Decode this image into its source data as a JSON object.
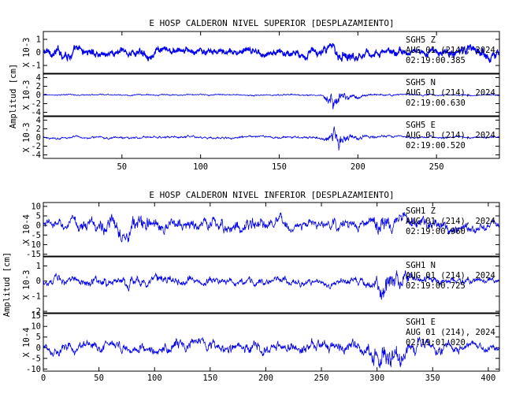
{
  "chart_data": [
    {
      "type": "line",
      "title": "E HOSP CALDERON NIVEL SUPERIOR [DESPLAZAMIENTO]",
      "ylabel": "Amplitud [cm]",
      "xlabel": "",
      "xlim": [
        0,
        290
      ],
      "x_ticks": [
        50,
        100,
        150,
        200,
        250
      ],
      "grid": false,
      "line_color": "#0000ee",
      "traces": [
        {
          "station": "SGH5",
          "component": "Z",
          "date": "AUG 01 (214), 2024",
          "time": "02:19:00.385",
          "scale": "X 10-3",
          "ylim": [
            -1.6,
            1.6
          ],
          "y_ticks": [
            -1,
            0,
            1
          ],
          "envelope": [
            [
              0,
              0.55
            ],
            [
              10,
              0.75
            ],
            [
              40,
              0.6
            ],
            [
              80,
              0.55
            ],
            [
              120,
              0.5
            ],
            [
              150,
              0.5
            ],
            [
              175,
              0.6
            ],
            [
              185,
              0.9
            ],
            [
              195,
              0.8
            ],
            [
              210,
              0.55
            ],
            [
              250,
              0.55
            ],
            [
              275,
              0.8
            ],
            [
              290,
              0.7
            ]
          ]
        },
        {
          "station": "SGH5",
          "component": "N",
          "date": "AUG 01 (214), 2024",
          "time": "02:19:00.630",
          "scale": "X 10-3",
          "ylim": [
            -4.8,
            4.8
          ],
          "y_ticks": [
            -4,
            -2,
            0,
            2,
            4
          ],
          "envelope": [
            [
              0,
              0.3
            ],
            [
              100,
              0.3
            ],
            [
              178,
              0.35
            ],
            [
              180,
              2.6
            ],
            [
              184,
              3.8
            ],
            [
              188,
              3.0
            ],
            [
              195,
              1.2
            ],
            [
              205,
              0.6
            ],
            [
              220,
              0.35
            ],
            [
              290,
              0.3
            ]
          ]
        },
        {
          "station": "SGH5",
          "component": "E",
          "date": "AUG 01 (214), 2024",
          "time": "02:19:00.520",
          "scale": "X 10-3",
          "ylim": [
            -4.8,
            4.8
          ],
          "y_ticks": [
            -4,
            -2,
            0,
            2,
            4
          ],
          "envelope": [
            [
              0,
              0.5
            ],
            [
              100,
              0.5
            ],
            [
              178,
              0.55
            ],
            [
              181,
              2.5
            ],
            [
              186,
              4.2
            ],
            [
              190,
              3.5
            ],
            [
              196,
              1.5
            ],
            [
              205,
              0.8
            ],
            [
              220,
              0.5
            ],
            [
              290,
              0.4
            ]
          ]
        }
      ]
    },
    {
      "type": "line",
      "title": "E HOSP CALDERON NIVEL INFERIOR [DESPLAZAMIENTO]",
      "ylabel": "Amplitud [cm]",
      "xlabel": "",
      "xlim": [
        0,
        410
      ],
      "x_ticks": [
        0,
        50,
        100,
        150,
        200,
        250,
        300,
        350,
        400
      ],
      "grid": false,
      "line_color": "#0000ee",
      "traces": [
        {
          "station": "SGH1",
          "component": "Z",
          "date": "AUG 01 (214), 2024",
          "time": "02:19:00.960",
          "scale": "X 10-4",
          "ylim": [
            -16,
            12
          ],
          "y_ticks": [
            -15,
            -10,
            -5,
            0,
            5,
            10
          ],
          "envelope": [
            [
              0,
              4
            ],
            [
              40,
              7
            ],
            [
              90,
              9
            ],
            [
              120,
              5
            ],
            [
              185,
              8
            ],
            [
              200,
              5
            ],
            [
              250,
              5
            ],
            [
              290,
              5
            ],
            [
              305,
              10
            ],
            [
              320,
              8
            ],
            [
              345,
              6
            ],
            [
              380,
              5
            ],
            [
              410,
              4
            ]
          ]
        },
        {
          "station": "SGH1",
          "component": "N",
          "date": "AUG 01 (214), 2024",
          "time": "02:19:00.725",
          "scale": "X 10-3",
          "ylim": [
            -2.1,
            1.6
          ],
          "y_ticks": [
            -2,
            -1,
            0,
            1
          ],
          "envelope": [
            [
              0,
              0.5
            ],
            [
              60,
              0.6
            ],
            [
              100,
              0.6
            ],
            [
              150,
              0.5
            ],
            [
              250,
              0.4
            ],
            [
              295,
              0.5
            ],
            [
              305,
              1.6
            ],
            [
              315,
              1.4
            ],
            [
              330,
              0.8
            ],
            [
              360,
              0.5
            ],
            [
              410,
              0.3
            ]
          ]
        },
        {
          "station": "SGH1",
          "component": "E",
          "date": "AUG 01 (214), 2024",
          "time": "02:19:01.020",
          "scale": "X 10-4",
          "ylim": [
            -11,
            16
          ],
          "y_ticks": [
            -10,
            -5,
            0,
            5,
            10,
            15
          ],
          "envelope": [
            [
              0,
              4
            ],
            [
              150,
              5
            ],
            [
              250,
              5
            ],
            [
              290,
              6
            ],
            [
              305,
              13
            ],
            [
              315,
              11
            ],
            [
              330,
              7
            ],
            [
              360,
              5
            ],
            [
              410,
              3
            ]
          ]
        }
      ]
    }
  ]
}
